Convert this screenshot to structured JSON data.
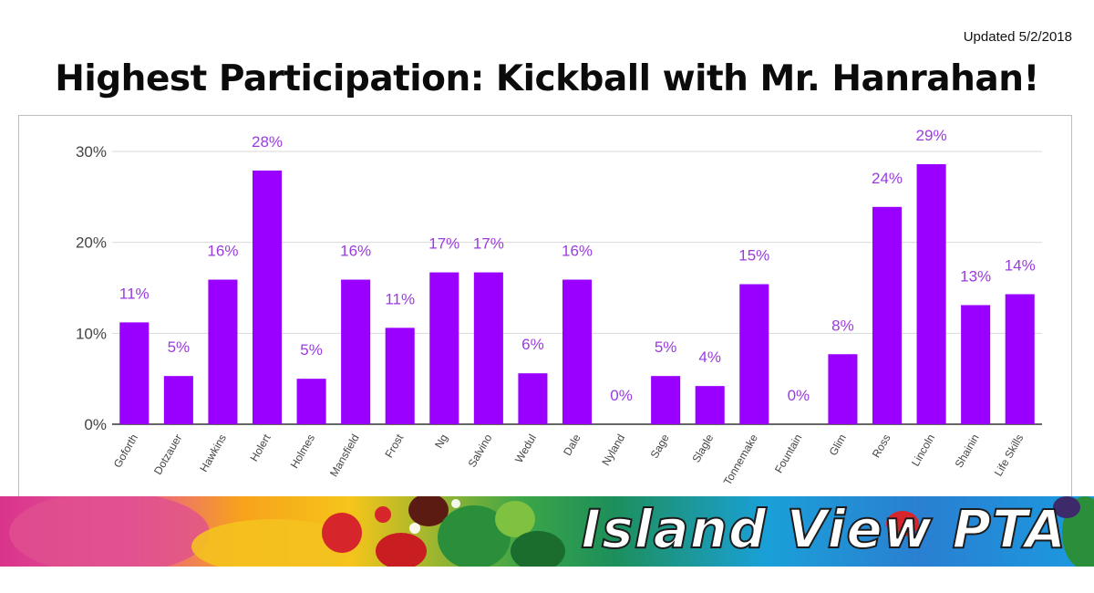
{
  "page": {
    "updated": "Updated 5/2/2018",
    "headline": "Highest Participation: Kickball with Mr. Hanrahan!",
    "banner_text": "Island View PTA"
  },
  "colors": {
    "bar": "#9900ff",
    "label": "#9a3be0",
    "axis_text": "#444444",
    "grid": "#d9d9d9"
  },
  "chart_data": {
    "type": "bar",
    "title": "",
    "xlabel": "",
    "ylabel": "",
    "categories": [
      "Goforth",
      "Dotzauer",
      "Hawkins",
      "Holert",
      "Holmes",
      "Mansfield",
      "Frost",
      "Ng",
      "Salvino",
      "Wedul",
      "Dale",
      "Nyland",
      "Sage",
      "Slagle",
      "Tonnemake",
      "Fountain",
      "Glim",
      "Ross",
      "Lincoln",
      "Shainin",
      "Life Skills"
    ],
    "values": [
      11.2,
      5.3,
      15.9,
      27.9,
      5.0,
      15.9,
      10.6,
      16.7,
      16.7,
      5.6,
      15.9,
      0,
      5.3,
      4.2,
      15.4,
      0,
      7.7,
      23.9,
      28.6,
      13.1,
      14.3
    ],
    "data_labels": [
      "11%",
      "5%",
      "16%",
      "28%",
      "5%",
      "16%",
      "11%",
      "17%",
      "17%",
      "6%",
      "16%",
      "0%",
      "5%",
      "4%",
      "15%",
      "0%",
      "8%",
      "24%",
      "29%",
      "13%",
      "14%"
    ],
    "yticks": [
      0,
      10,
      20,
      30
    ],
    "ytick_labels": [
      "0%",
      "10%",
      "20%",
      "30%"
    ],
    "ylim": [
      0,
      30
    ],
    "grid": true,
    "legend": "none"
  }
}
